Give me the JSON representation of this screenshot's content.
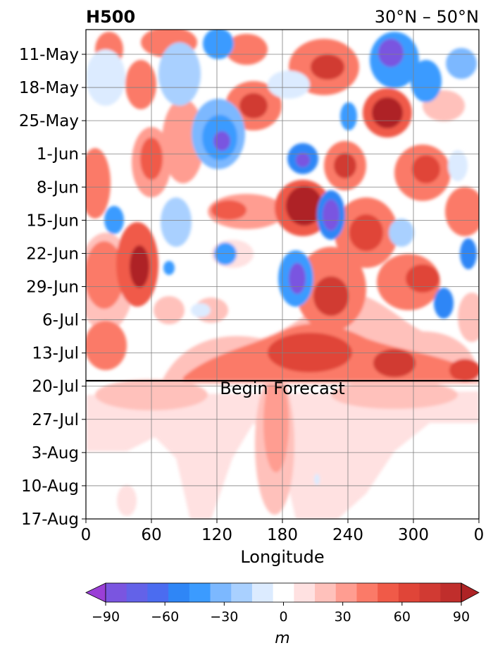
{
  "title_left": "H500",
  "title_right": "30°N – 50°N",
  "chart_data": {
    "type": "heatmap",
    "xlabel": "Longitude",
    "x_ticks": [
      "0",
      "60",
      "120",
      "180",
      "240",
      "300",
      "0"
    ],
    "x_tick_values": [
      0,
      60,
      120,
      180,
      240,
      300,
      360
    ],
    "xlim": [
      0,
      360
    ],
    "y_ticks": [
      "11-May",
      "18-May",
      "25-May",
      "1-Jun",
      "8-Jun",
      "15-Jun",
      "22-Jun",
      "29-Jun",
      "6-Jul",
      "13-Jul",
      "20-Jul",
      "27-Jul",
      "3-Aug",
      "10-Aug",
      "17-Aug"
    ],
    "ylim": [
      "8-May",
      "17-Aug"
    ],
    "grid": true,
    "forecast_start": {
      "date": "20-Jul",
      "label": "Begin Forecast"
    },
    "colorbar": {
      "orientation": "horizontal",
      "label": "m",
      "tick_labels": [
        "−90",
        "−60",
        "−30",
        "0",
        "30",
        "60",
        "90"
      ],
      "tick_values": [
        -90,
        -60,
        -30,
        0,
        30,
        60,
        90
      ],
      "levels": [
        -100,
        -90,
        -80,
        -70,
        -60,
        -50,
        -40,
        -30,
        -20,
        -10,
        10,
        20,
        30,
        40,
        50,
        60,
        70,
        80,
        90,
        100
      ],
      "colors": [
        "#9a3fd6",
        "#7a55e0",
        "#6362e8",
        "#4b6cf0",
        "#2f86f6",
        "#3b9bff",
        "#7cb8ff",
        "#a9d0ff",
        "#dcebff",
        "#ffffff",
        "#ffe1e1",
        "#ffc1bb",
        "#ff9d91",
        "#fb7a68",
        "#f05a48",
        "#e04538",
        "#d13a33",
        "#c02e2c",
        "#ae2325"
      ],
      "extend": "both"
    },
    "features": [
      {
        "lon": 120,
        "date": "29-May",
        "value": -70
      },
      {
        "lon": 200,
        "date": "30-Jun",
        "value": -80
      },
      {
        "lon": 230,
        "date": "13-Jun",
        "value": -90
      },
      {
        "lon": 290,
        "date": "12-May",
        "value": -85
      },
      {
        "lon": 200,
        "date": "4-Jun",
        "value": -70
      },
      {
        "lon": 190,
        "date": "11-Jun",
        "value": 100
      },
      {
        "lon": 280,
        "date": "27-May",
        "value": 100
      },
      {
        "lon": 45,
        "date": "27-Jun",
        "value": 90
      },
      {
        "lon": 185,
        "date": "27-Jul",
        "value": 40
      }
    ]
  }
}
